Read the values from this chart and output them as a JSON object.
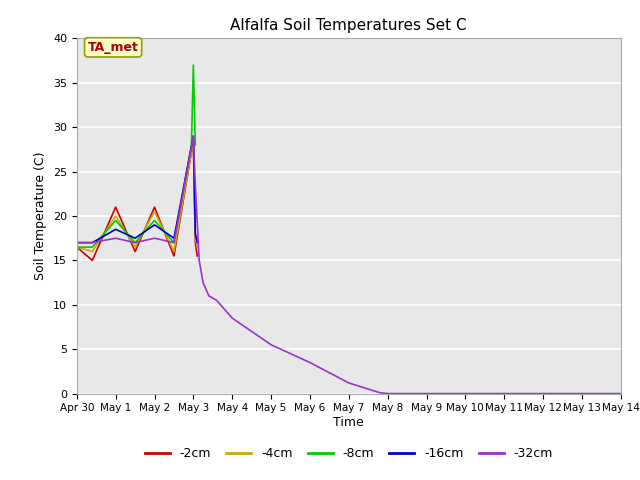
{
  "title": "Alfalfa Soil Temperatures Set C",
  "xlabel": "Time",
  "ylabel": "Soil Temperature (C)",
  "ylim": [
    0,
    40
  ],
  "xlim": [
    0,
    14
  ],
  "xtick_labels": [
    "Apr 30",
    "May 1",
    "May 2",
    "May 3",
    "May 4",
    "May 5",
    "May 6",
    "May 7",
    "May 8",
    "May 9",
    "May 10",
    "May 11",
    "May 12",
    "May 13",
    "May 14"
  ],
  "bg_color": "#e8e8e8",
  "legend_entries": [
    "-2cm",
    "-4cm",
    "-8cm",
    "-16cm",
    "-32cm"
  ],
  "legend_colors": [
    "#cc0000",
    "#ccaa00",
    "#00cc00",
    "#0000cc",
    "#9933cc"
  ],
  "annotation_text": "TA_met",
  "annotation_color": "#aa0000",
  "annotation_bg": "#ffffcc",
  "series": {
    "neg2cm": {
      "color": "#cc0000",
      "x": [
        0,
        0.4,
        1.0,
        1.5,
        2.0,
        2.5,
        3.0,
        3.05,
        3.1
      ],
      "y": [
        16.5,
        15.0,
        21.0,
        16.0,
        21.0,
        15.5,
        28.5,
        17.0,
        15.5
      ]
    },
    "neg4cm": {
      "color": "#ccaa00",
      "x": [
        0,
        0.4,
        1.0,
        1.5,
        2.0,
        2.5,
        3.0,
        3.05,
        3.1
      ],
      "y": [
        16.5,
        16.0,
        20.0,
        16.5,
        20.5,
        16.0,
        28.5,
        17.5,
        16.5
      ]
    },
    "neg8cm": {
      "color": "#00cc00",
      "x": [
        0,
        0.4,
        1.0,
        1.5,
        2.0,
        2.5,
        2.95,
        3.0,
        3.05
      ],
      "y": [
        16.5,
        16.5,
        19.5,
        17.0,
        19.5,
        17.0,
        28.0,
        37.0,
        28.0
      ]
    },
    "neg16cm": {
      "color": "#0000cc",
      "x": [
        0,
        0.4,
        1.0,
        1.5,
        2.0,
        2.5,
        3.0,
        3.05,
        3.1
      ],
      "y": [
        17.0,
        17.0,
        18.5,
        17.5,
        19.0,
        17.5,
        29.0,
        18.0,
        17.0
      ]
    },
    "neg32cm": {
      "color": "#9933cc",
      "x": [
        0,
        0.4,
        1.0,
        1.5,
        2.0,
        2.5,
        3.0,
        3.05,
        3.15,
        3.25,
        3.4,
        3.6,
        4.0,
        5.0,
        6.0,
        7.0,
        7.8,
        8.0,
        9.0,
        10.0,
        11.0,
        12.0,
        13.0,
        14.0
      ],
      "y": [
        17.0,
        17.0,
        17.5,
        17.0,
        17.5,
        17.0,
        29.0,
        23.5,
        15.0,
        12.5,
        11.0,
        10.5,
        8.5,
        5.5,
        3.5,
        1.2,
        0.1,
        0.0,
        0.0,
        0.0,
        0.0,
        0.0,
        0.0,
        0.0
      ]
    }
  }
}
